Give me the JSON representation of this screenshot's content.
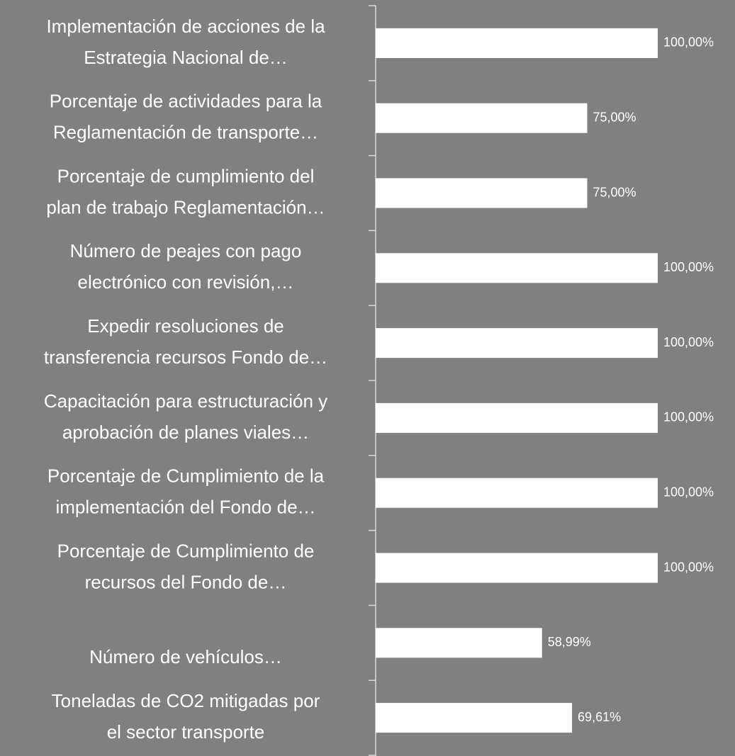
{
  "chart_data": {
    "type": "hbar",
    "categories": [
      [
        "Implementación de acciones de la",
        "Estrategia Nacional de…"
      ],
      [
        "Porcentaje de actividades para la",
        "Reglamentación de transporte…"
      ],
      [
        "Porcentaje de cumplimiento del",
        "plan de trabajo Reglamentación…"
      ],
      [
        "Número de peajes con pago",
        "electrónico con revisión,…"
      ],
      [
        "Expedir resoluciones de",
        "transferencia recursos Fondo de…"
      ],
      [
        "Capacitación para estructuración y",
        "aprobación de planes viales…"
      ],
      [
        "Porcentaje de Cumplimiento de la",
        "implementación del Fondo de…"
      ],
      [
        "Porcentaje de Cumplimiento de",
        "recursos del Fondo de…"
      ],
      [
        "Número de vehículos…"
      ],
      [
        "Toneladas de CO2 mitigadas por",
        "el sector transporte"
      ]
    ],
    "values": [
      100,
      75,
      75,
      100,
      100,
      100,
      100,
      100,
      58.99,
      69.61
    ],
    "value_labels": [
      "100,00%",
      "75,00%",
      "75,00%",
      "100,00%",
      "100,00%",
      "100,00%",
      "100,00%",
      "100,00%",
      "58,99%",
      "69,61%"
    ],
    "color": "#ffffff",
    "xlim": [
      0,
      100
    ]
  }
}
